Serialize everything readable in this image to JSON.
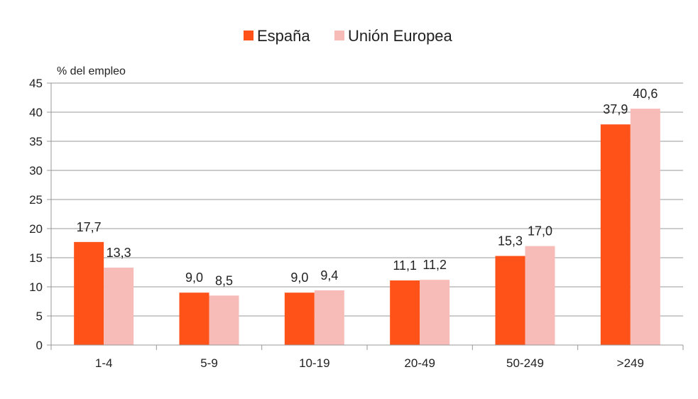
{
  "chart_data": {
    "type": "bar",
    "unit_label": "% del empleo",
    "categories": [
      "1-4",
      "5-9",
      "10-19",
      "20-49",
      "50-249",
      ">249"
    ],
    "series": [
      {
        "name": "España",
        "color": "#ff5219",
        "values": [
          17.7,
          9.0,
          9.0,
          11.1,
          15.3,
          37.9
        ],
        "labels": [
          "17,7",
          "9,0",
          "9,0",
          "11,1",
          "15,3",
          "37,9"
        ]
      },
      {
        "name": "Unión Europea",
        "color": "#f7bcb8",
        "values": [
          13.3,
          8.5,
          9.4,
          11.2,
          17.0,
          40.6
        ],
        "labels": [
          "13,3",
          "8,5",
          "9,4",
          "11,2",
          "17,0",
          "40,6"
        ]
      }
    ],
    "ylim": [
      0,
      45
    ],
    "yticks": [
      0,
      5,
      10,
      15,
      20,
      25,
      30,
      35,
      40,
      45
    ],
    "grid": true,
    "legend_position": "top-center",
    "axis_color": "#999999",
    "grid_color": "#999999"
  }
}
